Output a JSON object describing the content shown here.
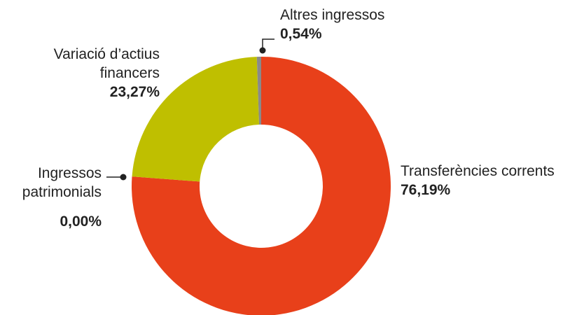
{
  "chart_data": {
    "type": "donut",
    "categories": [
      "Transferències corrents",
      "Ingressos patrimonials",
      "Variació d’actius financers",
      "Altres ingressos"
    ],
    "values": [
      76.19,
      0.0,
      23.27,
      0.54
    ],
    "value_labels": [
      "76,19%",
      "0,00%",
      "23,27%",
      "0,54%"
    ],
    "colors": [
      "#e8401a",
      "#9a9a9a",
      "#bfbf00",
      "#8a8a8a"
    ]
  }
}
